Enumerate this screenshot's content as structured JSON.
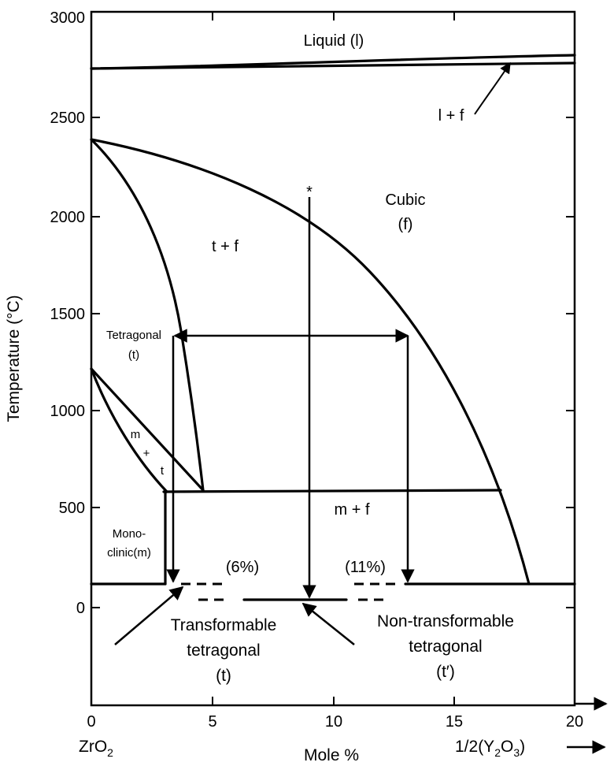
{
  "axes": {
    "ylabel": "Temperature (°C)",
    "xlabel": "Mole %",
    "x_left_label_base": "ZrO",
    "x_left_label_sub": "2",
    "x_right_label_pre": "1/2(Y",
    "x_right_label_sub1": "2",
    "x_right_label_mid": "O",
    "x_right_label_sub2": "3",
    "x_right_label_post": ")",
    "x_arrow": "⟶",
    "xlim": [
      0,
      20
    ],
    "ylim": [
      -500,
      3000
    ],
    "x_ticks": [
      "0",
      "5",
      "10",
      "15",
      "20"
    ],
    "y_ticks": [
      "3000",
      "2500",
      "2000",
      "1500",
      "1000",
      "500",
      "0"
    ]
  },
  "regions": {
    "liquid": "Liquid (l)",
    "liquid_cubic": "l + f",
    "cubic_1": "Cubic",
    "cubic_2": "(f)",
    "tf": "t + f",
    "tetragonal_1": "Tetragonal",
    "tetragonal_2": "(t)",
    "mt_m": "m",
    "mt_plus": "+",
    "mt_t": "t",
    "mf": "m + f",
    "mono_1": "Mono-",
    "mono_2": "clinic(m)"
  },
  "annotations": {
    "pct6": "(6%)",
    "pct11": "(11%)",
    "star": "*",
    "transformable_1": "Transformable",
    "transformable_2": "tetragonal",
    "transformable_3": "(t)",
    "nontransformable_1": "Non-transformable",
    "nontransformable_2": "tetragonal",
    "nontransformable_3": "(t′)"
  }
}
